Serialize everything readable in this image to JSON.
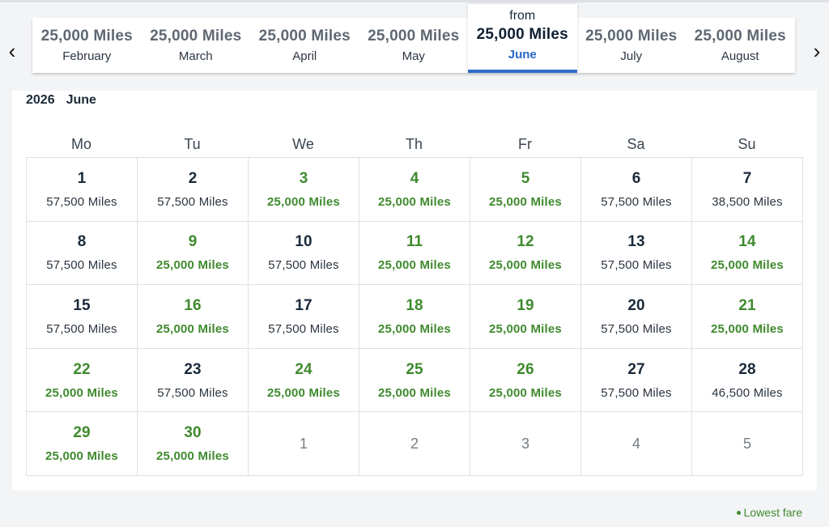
{
  "nav": {
    "prev_icon": "‹",
    "next_icon": "›"
  },
  "months": [
    {
      "miles": "25,000 Miles",
      "name": "February"
    },
    {
      "miles": "25,000 Miles",
      "name": "March"
    },
    {
      "miles": "25,000 Miles",
      "name": "April"
    },
    {
      "miles": "25,000 Miles",
      "name": "May"
    },
    {
      "from": "from",
      "miles": "25,000 Miles",
      "name": "June",
      "active": true
    },
    {
      "miles": "25,000 Miles",
      "name": "July"
    },
    {
      "miles": "25,000 Miles",
      "name": "August"
    }
  ],
  "calendar": {
    "year": "2026",
    "month": "June",
    "weekdays": [
      "Mo",
      "Tu",
      "We",
      "Th",
      "Fr",
      "Sa",
      "Su"
    ],
    "days": [
      {
        "day": "1",
        "fare": "57,500 Miles",
        "low": false
      },
      {
        "day": "2",
        "fare": "57,500 Miles",
        "low": false
      },
      {
        "day": "3",
        "fare": "25,000 Miles",
        "low": true
      },
      {
        "day": "4",
        "fare": "25,000 Miles",
        "low": true
      },
      {
        "day": "5",
        "fare": "25,000 Miles",
        "low": true
      },
      {
        "day": "6",
        "fare": "57,500 Miles",
        "low": false
      },
      {
        "day": "7",
        "fare": "38,500 Miles",
        "low": false
      },
      {
        "day": "8",
        "fare": "57,500 Miles",
        "low": false
      },
      {
        "day": "9",
        "fare": "25,000 Miles",
        "low": true
      },
      {
        "day": "10",
        "fare": "57,500 Miles",
        "low": false
      },
      {
        "day": "11",
        "fare": "25,000 Miles",
        "low": true
      },
      {
        "day": "12",
        "fare": "25,000 Miles",
        "low": true
      },
      {
        "day": "13",
        "fare": "57,500 Miles",
        "low": false
      },
      {
        "day": "14",
        "fare": "25,000 Miles",
        "low": true
      },
      {
        "day": "15",
        "fare": "57,500 Miles",
        "low": false
      },
      {
        "day": "16",
        "fare": "25,000 Miles",
        "low": true
      },
      {
        "day": "17",
        "fare": "57,500 Miles",
        "low": false
      },
      {
        "day": "18",
        "fare": "25,000 Miles",
        "low": true
      },
      {
        "day": "19",
        "fare": "25,000 Miles",
        "low": true
      },
      {
        "day": "20",
        "fare": "57,500 Miles",
        "low": false
      },
      {
        "day": "21",
        "fare": "25,000 Miles",
        "low": true
      },
      {
        "day": "22",
        "fare": "25,000 Miles",
        "low": true
      },
      {
        "day": "23",
        "fare": "57,500 Miles",
        "low": false
      },
      {
        "day": "24",
        "fare": "25,000 Miles",
        "low": true
      },
      {
        "day": "25",
        "fare": "25,000 Miles",
        "low": true
      },
      {
        "day": "26",
        "fare": "25,000 Miles",
        "low": true
      },
      {
        "day": "27",
        "fare": "57,500 Miles",
        "low": false
      },
      {
        "day": "28",
        "fare": "46,500 Miles",
        "low": false
      },
      {
        "day": "29",
        "fare": "25,000 Miles",
        "low": true
      },
      {
        "day": "30",
        "fare": "25,000 Miles",
        "low": true
      },
      {
        "day": "1",
        "fare": "",
        "off": true
      },
      {
        "day": "2",
        "fare": "",
        "off": true
      },
      {
        "day": "3",
        "fare": "",
        "off": true
      },
      {
        "day": "4",
        "fare": "",
        "off": true
      },
      {
        "day": "5",
        "fare": "",
        "off": true
      }
    ]
  },
  "legend": {
    "label": "Lowest fare"
  },
  "colors": {
    "low_fare": "#3f8a2e",
    "active_month": "#2767c8"
  }
}
